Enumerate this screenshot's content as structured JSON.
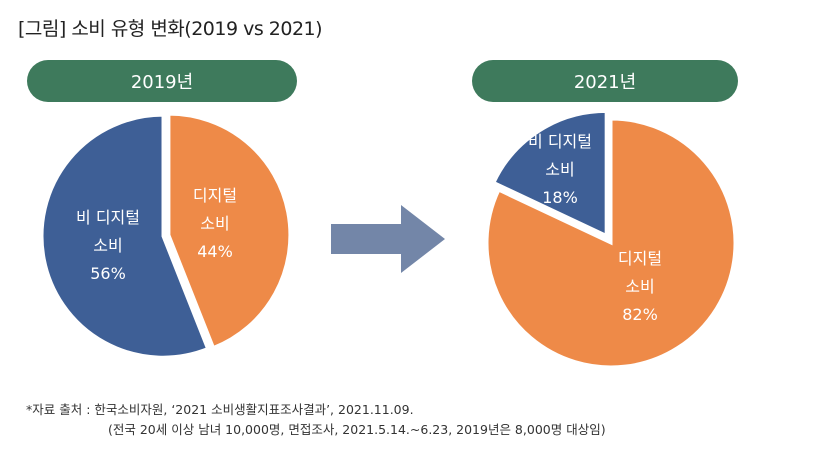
{
  "title": "[그림]  소비 유형 변화(2019 vs 2021)",
  "colors": {
    "digital": "#ee8a48",
    "non_digital": "#3e5f96",
    "pill": "#3e7a5c",
    "arrow": "#7386a8"
  },
  "chart_data": [
    {
      "type": "pie",
      "title": "2019년",
      "slices": [
        {
          "label_line1": "디지털",
          "label_line2": "소비",
          "value": 44,
          "value_text": "44%",
          "color": "#ee8a48"
        },
        {
          "label_line1": "비 디지털",
          "label_line2": "소비",
          "value": 56,
          "value_text": "56%",
          "color": "#3e5f96"
        }
      ]
    },
    {
      "type": "pie",
      "title": "2021년",
      "slices": [
        {
          "label_line1": "디지털",
          "label_line2": "소비",
          "value": 82,
          "value_text": "82%",
          "color": "#ee8a48"
        },
        {
          "label_line1": "비 디지털",
          "label_line2": "소비",
          "value": 18,
          "value_text": "18%",
          "color": "#3e5f96"
        }
      ]
    }
  ],
  "source": {
    "line1": "*자료 출처 : 한국소비자원, ‘2021 소비생활지표조사결과’, 2021.11.09.",
    "line2": "(전국 20세 이상 남녀 10,000명, 면접조사, 2021.5.14.~6.23, 2019년은 8,000명 대상임)"
  }
}
